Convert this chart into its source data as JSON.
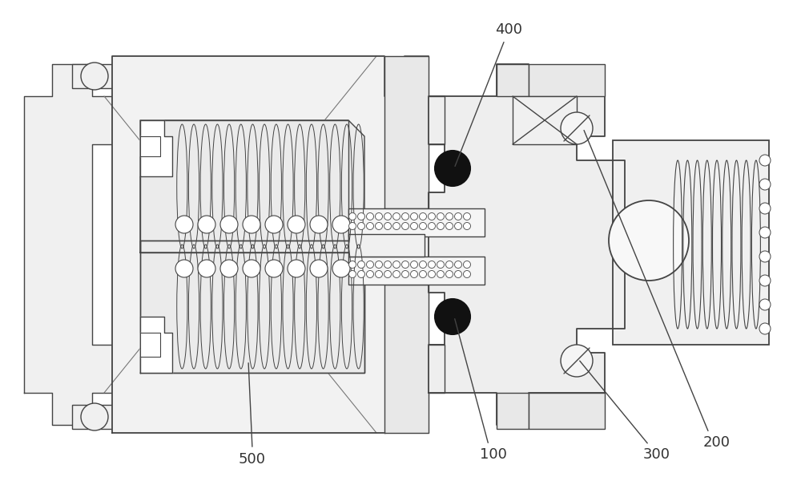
{
  "bg_color": "#ffffff",
  "line_color": "#444444",
  "label_color": "#333333",
  "hatch_color": "#bbbbbb",
  "fill_light": "#f8f8f8",
  "fill_mid": "#eeeeee"
}
